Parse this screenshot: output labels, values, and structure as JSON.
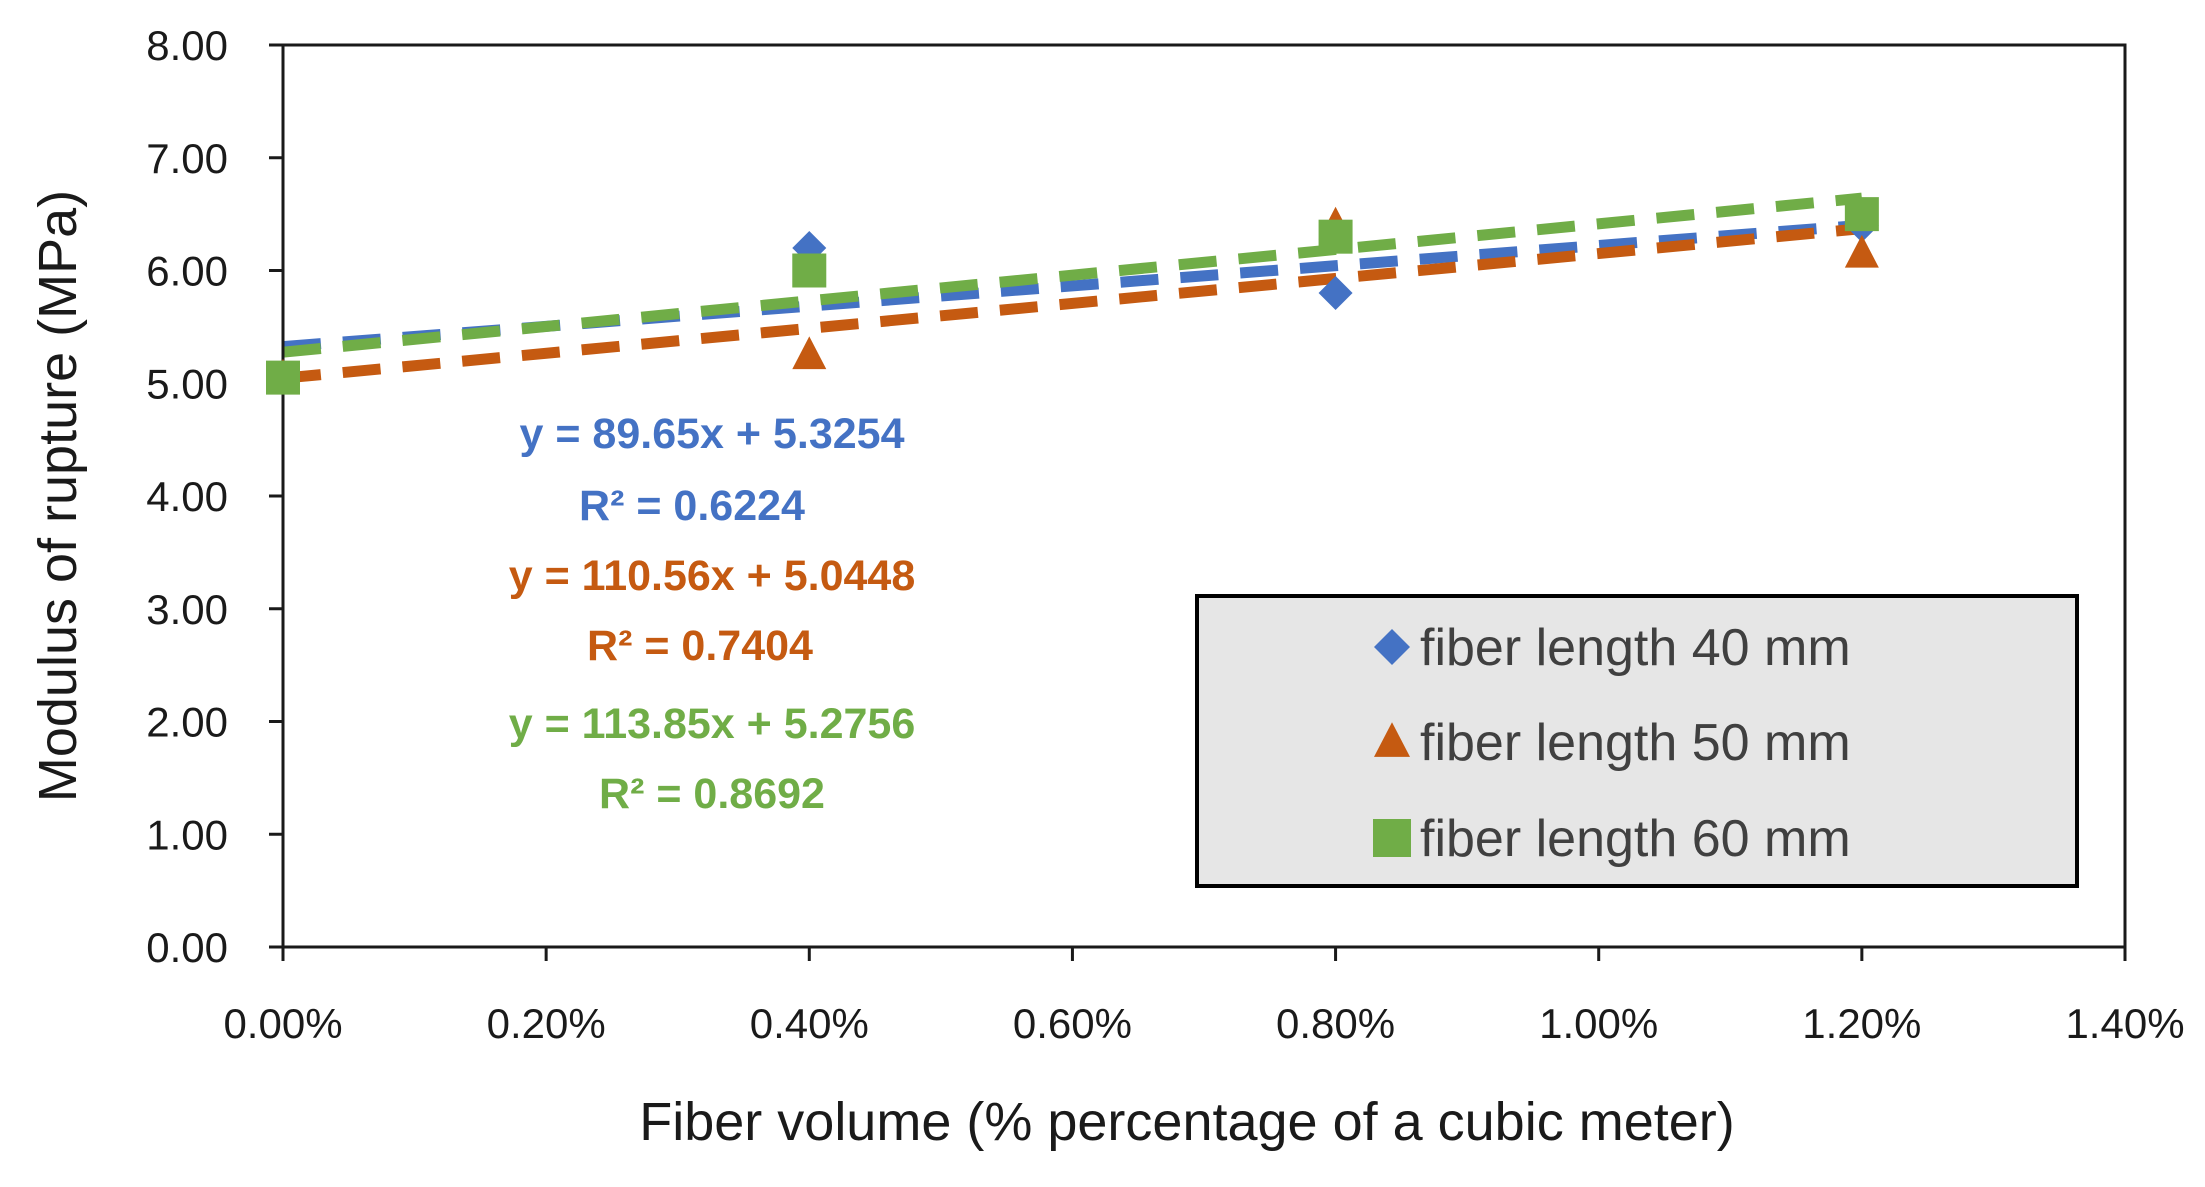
{
  "chart_data": {
    "type": "scatter",
    "xlabel": "Fiber volume (% percentage of a cubic meter)",
    "ylabel": "Modulus of rupture (MPa)",
    "xlim": [
      0,
      0.014
    ],
    "ylim": [
      0,
      8
    ],
    "x_ticks": [
      0,
      0.002,
      0.004,
      0.006,
      0.008,
      0.01,
      0.012,
      0.014
    ],
    "x_tick_labels": [
      "0.00%",
      "0.20%",
      "0.40%",
      "0.60%",
      "0.80%",
      "1.00%",
      "1.20%",
      "1.40%"
    ],
    "y_ticks": [
      0,
      1,
      2,
      3,
      4,
      5,
      6,
      7,
      8
    ],
    "y_tick_labels": [
      "0.00",
      "1.00",
      "2.00",
      "3.00",
      "4.00",
      "5.00",
      "6.00",
      "7.00",
      "8.00"
    ],
    "grid": false,
    "legend_position": "bottom-right",
    "series": [
      {
        "name": "fiber length 40 mm",
        "marker": "diamond",
        "color": "#4472C4",
        "x": [
          0.0,
          0.004,
          0.008,
          0.012
        ],
        "y": [
          5.05,
          6.2,
          5.8,
          6.4
        ],
        "trendline": {
          "slope": 89.65,
          "intercept": 5.3254
        },
        "equation": "y = 89.65x + 5.3254",
        "r2": "R² = 0.6224"
      },
      {
        "name": "fiber length 50 mm",
        "marker": "triangle",
        "color": "#C55A11",
        "x": [
          0.0,
          0.004,
          0.008,
          0.012
        ],
        "y": [
          5.05,
          5.25,
          6.4,
          6.15
        ],
        "trendline": {
          "slope": 110.56,
          "intercept": 5.0448
        },
        "equation": "y = 110.56x + 5.0448",
        "r2": "R² = 0.7404"
      },
      {
        "name": "fiber length 60 mm",
        "marker": "square",
        "color": "#70AD47",
        "x": [
          0.0,
          0.004,
          0.008,
          0.012
        ],
        "y": [
          5.05,
          6.0,
          6.3,
          6.5
        ],
        "trendline": {
          "slope": 113.85,
          "intercept": 5.2756
        },
        "equation": "y = 113.85x + 5.2756",
        "r2": "R² = 0.8692"
      }
    ]
  }
}
